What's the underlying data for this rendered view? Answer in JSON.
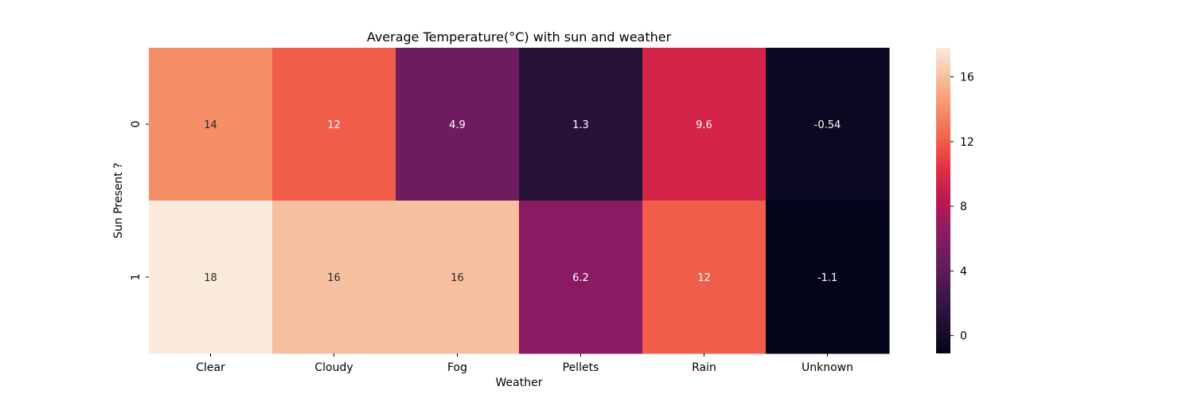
{
  "chart_data": {
    "type": "heatmap",
    "title": "Average Temperature(°C) with sun and weather",
    "xlabel": "Weather",
    "ylabel": "Sun Present ?",
    "x_categories": [
      "Clear",
      "Cloudy",
      "Fog",
      "Pellets",
      "Rain",
      "Unknown"
    ],
    "y_categories": [
      "0",
      "1"
    ],
    "values": [
      [
        14,
        12,
        4.9,
        1.3,
        9.6,
        -0.54
      ],
      [
        18,
        16,
        16,
        6.2,
        12,
        -1.1
      ]
    ],
    "cell_labels": [
      [
        "14",
        "12",
        "4.9",
        "1.3",
        "9.6",
        "-0.54"
      ],
      [
        "18",
        "16",
        "16",
        "6.2",
        "12",
        "-1.1"
      ]
    ],
    "colorbar": {
      "vmin": -1.1,
      "vmax": 17.8,
      "ticks": [
        0,
        4,
        8,
        12,
        16
      ],
      "tick_labels": [
        "0",
        "4",
        "8",
        "12",
        "16"
      ],
      "colormap": "rocket"
    },
    "grid": false
  }
}
